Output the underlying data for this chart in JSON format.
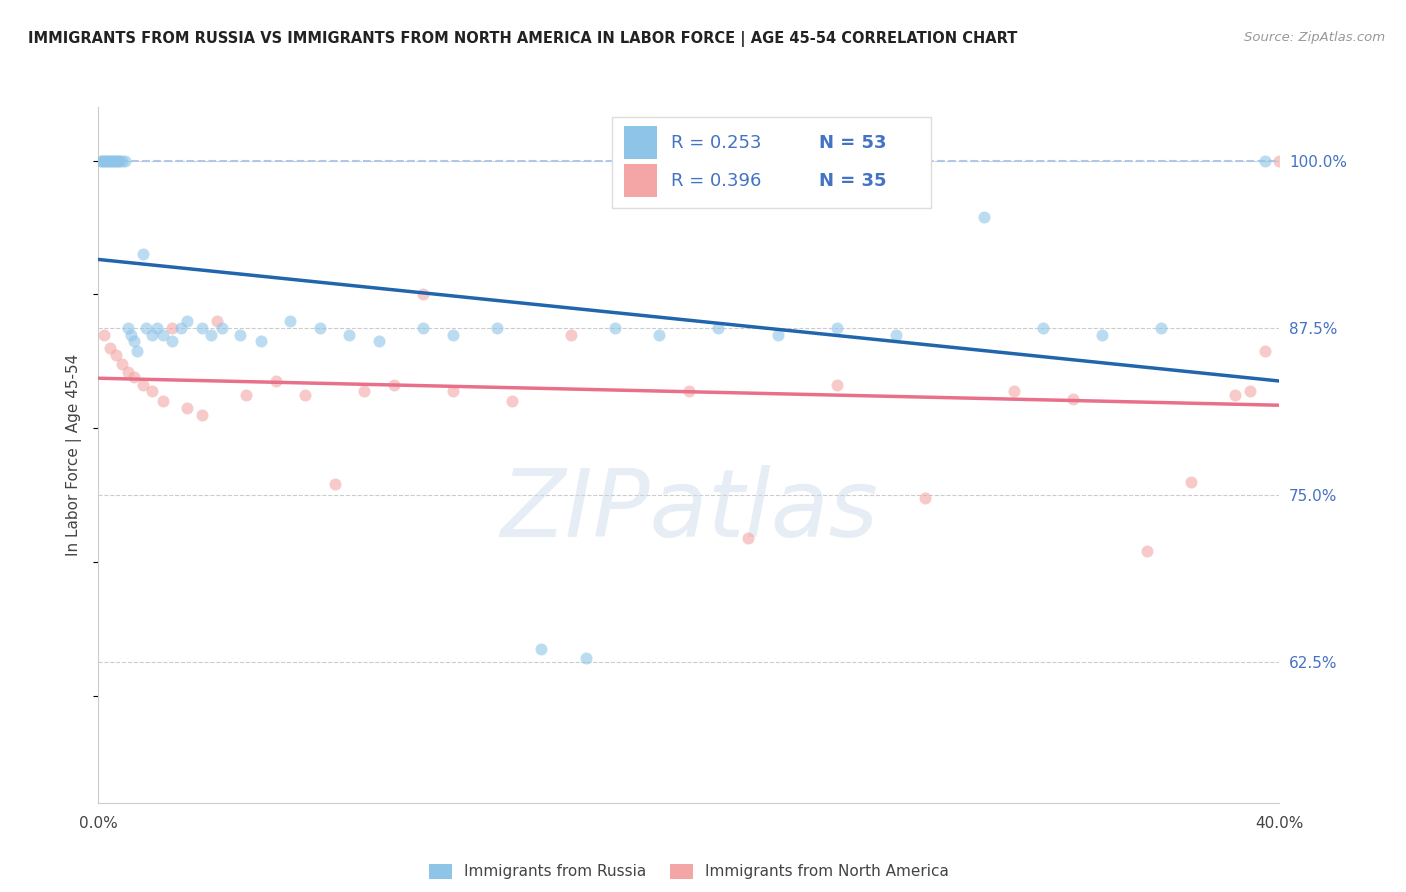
{
  "title": "IMMIGRANTS FROM RUSSIA VS IMMIGRANTS FROM NORTH AMERICA IN LABOR FORCE | AGE 45-54 CORRELATION CHART",
  "source": "Source: ZipAtlas.com",
  "ylabel": "In Labor Force | Age 45-54",
  "ytick_labels": [
    "62.5%",
    "75.0%",
    "87.5%",
    "100.0%"
  ],
  "ytick_values": [
    0.625,
    0.75,
    0.875,
    1.0
  ],
  "xlim": [
    0.0,
    0.4
  ],
  "ylim": [
    0.52,
    1.04
  ],
  "watermark_text": "ZIPatlas",
  "blue_color": "#8ec4e8",
  "pink_color": "#f4a6a6",
  "blue_line_color": "#2166ac",
  "pink_line_color": "#e8708a",
  "dashed_line_color": "#b0c8e8",
  "right_label_color": "#4472c4",
  "title_color": "#222222",
  "source_color": "#999999",
  "grid_color": "#cccccc",
  "scatter_alpha": 0.6,
  "scatter_size": 75,
  "russia_x": [
    0.001,
    0.001,
    0.002,
    0.002,
    0.003,
    0.003,
    0.004,
    0.004,
    0.005,
    0.005,
    0.006,
    0.006,
    0.007,
    0.007,
    0.008,
    0.009,
    0.01,
    0.011,
    0.012,
    0.013,
    0.015,
    0.016,
    0.018,
    0.02,
    0.022,
    0.025,
    0.028,
    0.03,
    0.035,
    0.038,
    0.042,
    0.048,
    0.055,
    0.065,
    0.075,
    0.085,
    0.095,
    0.11,
    0.12,
    0.135,
    0.15,
    0.165,
    0.175,
    0.19,
    0.21,
    0.23,
    0.25,
    0.27,
    0.3,
    0.32,
    0.34,
    0.36,
    0.395
  ],
  "russia_y": [
    1.0,
    1.0,
    1.0,
    1.0,
    1.0,
    1.0,
    1.0,
    1.0,
    1.0,
    1.0,
    1.0,
    1.0,
    1.0,
    1.0,
    1.0,
    1.0,
    0.875,
    0.87,
    0.865,
    0.858,
    0.93,
    0.875,
    0.87,
    0.875,
    0.87,
    0.865,
    0.875,
    0.88,
    0.875,
    0.87,
    0.875,
    0.87,
    0.865,
    0.88,
    0.875,
    0.87,
    0.865,
    0.875,
    0.87,
    0.875,
    0.635,
    0.628,
    0.875,
    0.87,
    0.875,
    0.87,
    0.875,
    0.87,
    0.958,
    0.875,
    0.87,
    0.875,
    1.0
  ],
  "northamerica_x": [
    0.002,
    0.004,
    0.006,
    0.008,
    0.01,
    0.012,
    0.015,
    0.018,
    0.022,
    0.025,
    0.03,
    0.035,
    0.04,
    0.05,
    0.06,
    0.07,
    0.08,
    0.09,
    0.1,
    0.12,
    0.14,
    0.16,
    0.2,
    0.22,
    0.25,
    0.28,
    0.31,
    0.33,
    0.355,
    0.37,
    0.385,
    0.39,
    0.11,
    0.395,
    0.4
  ],
  "northamerica_y": [
    0.87,
    0.86,
    0.855,
    0.848,
    0.842,
    0.838,
    0.832,
    0.828,
    0.82,
    0.875,
    0.815,
    0.81,
    0.88,
    0.825,
    0.835,
    0.825,
    0.758,
    0.828,
    0.832,
    0.828,
    0.82,
    0.87,
    0.828,
    0.718,
    0.832,
    0.748,
    0.828,
    0.822,
    0.708,
    0.76,
    0.825,
    0.828,
    0.9,
    0.858,
    1.0
  ]
}
